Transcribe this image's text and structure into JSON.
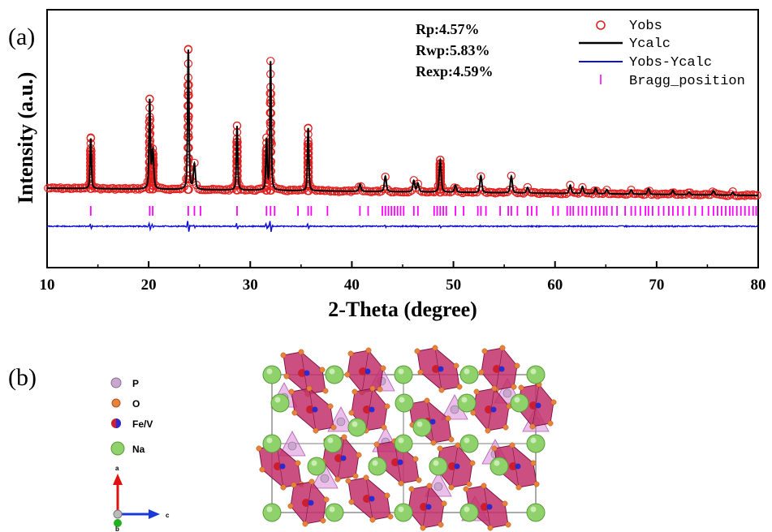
{
  "chart_data": {
    "type": "line",
    "panel_label": "(a)",
    "xlabel": "2-Theta (degree)",
    "ylabel": "Intensity (a.u.)",
    "xlim": [
      10,
      80
    ],
    "x_ticks": [
      10,
      20,
      30,
      40,
      50,
      60,
      70,
      80
    ],
    "y_ticks": [],
    "statistics": [
      "Rp:4.57%",
      "Rwp:5.83%",
      "Rexp:4.59%"
    ],
    "legend_position": "top-right",
    "series": [
      {
        "name": "Yobs",
        "style": "open-circle",
        "color": "#e02020"
      },
      {
        "name": "Ycalc",
        "style": "line",
        "color": "#000000"
      },
      {
        "name": "Yobs-Ycalc",
        "style": "line",
        "color": "#1010d0"
      },
      {
        "name": "Bragg_position",
        "style": "tick",
        "color": "#ff00ff"
      }
    ],
    "peaks": [
      {
        "x": 14.3,
        "height": 0.36
      },
      {
        "x": 20.1,
        "height": 0.63
      },
      {
        "x": 20.4,
        "height": 0.27
      },
      {
        "x": 23.9,
        "height": 1.0
      },
      {
        "x": 24.5,
        "height": 0.18
      },
      {
        "x": 28.7,
        "height": 0.46
      },
      {
        "x": 31.6,
        "height": 0.36
      },
      {
        "x": 32.0,
        "height": 0.92
      },
      {
        "x": 35.7,
        "height": 0.45
      },
      {
        "x": 40.8,
        "height": 0.05
      },
      {
        "x": 43.3,
        "height": 0.11
      },
      {
        "x": 46.1,
        "height": 0.08
      },
      {
        "x": 46.5,
        "height": 0.06
      },
      {
        "x": 48.7,
        "height": 0.23
      },
      {
        "x": 50.2,
        "height": 0.05
      },
      {
        "x": 52.7,
        "height": 0.12
      },
      {
        "x": 55.7,
        "height": 0.12
      },
      {
        "x": 57.3,
        "height": 0.04
      },
      {
        "x": 61.5,
        "height": 0.06
      },
      {
        "x": 62.7,
        "height": 0.05
      },
      {
        "x": 64.0,
        "height": 0.04
      },
      {
        "x": 65.1,
        "height": 0.03
      },
      {
        "x": 67.5,
        "height": 0.03
      },
      {
        "x": 69.2,
        "height": 0.04
      },
      {
        "x": 71.6,
        "height": 0.03
      },
      {
        "x": 73.2,
        "height": 0.02
      },
      {
        "x": 75.6,
        "height": 0.03
      },
      {
        "x": 77.5,
        "height": 0.02
      }
    ],
    "bragg_positions": [
      14.3,
      20.1,
      20.4,
      23.9,
      24.5,
      25.1,
      28.7,
      31.6,
      32.0,
      32.4,
      34.7,
      35.7,
      36.0,
      37.6,
      40.8,
      41.6,
      43.0,
      43.3,
      43.6,
      43.9,
      44.2,
      44.5,
      44.8,
      45.1,
      46.1,
      46.5,
      48.1,
      48.4,
      48.7,
      49.0,
      49.3,
      50.2,
      51.0,
      52.4,
      52.7,
      53.2,
      54.6,
      55.4,
      55.7,
      56.3,
      57.3,
      57.7,
      58.2,
      59.8,
      60.3,
      61.2,
      61.5,
      61.8,
      62.3,
      62.7,
      63.1,
      63.6,
      64.0,
      64.4,
      64.8,
      65.1,
      65.6,
      66.1,
      66.9,
      67.5,
      67.9,
      68.4,
      68.9,
      69.2,
      69.6,
      70.2,
      70.7,
      71.2,
      71.6,
      72.1,
      72.6,
      73.2,
      73.8,
      74.5,
      75.1,
      75.6,
      76.0,
      76.4,
      76.8,
      77.2,
      77.5,
      77.9,
      78.3,
      78.7,
      79.1,
      79.5,
      79.8
    ]
  },
  "structure_panel": {
    "panel_label": "(b)",
    "legend": [
      {
        "label": "P",
        "color": "#c9a7cf"
      },
      {
        "label": "O",
        "color": "#e8823a"
      },
      {
        "label": "Fe/V",
        "color": "#cc1e2e"
      },
      {
        "label": "Na",
        "color": "#8fd16a"
      }
    ],
    "axes": {
      "vertical": "a",
      "horizontal": "c",
      "out": "b"
    },
    "colors": {
      "polyhedron": "#c2306a",
      "po4": "#d98ad9",
      "na": "#8fd16a",
      "o": "#e8823a",
      "cell": "#555555"
    }
  }
}
